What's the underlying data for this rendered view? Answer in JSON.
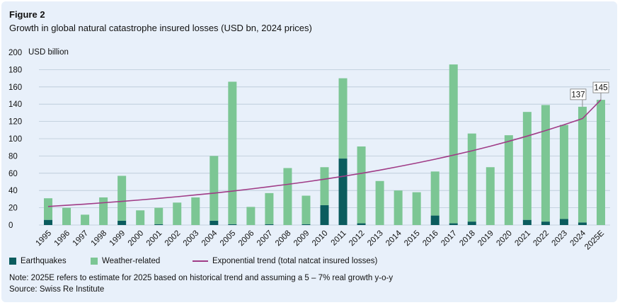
{
  "figure_label": "Figure 2",
  "title": "Growth in global natural catastrophe insured losses (USD bn, 2024 prices)",
  "note": "Note: 2025E refers to estimate for 2025 based on historical trend and assuming a 5 – 7% real growth y-o-y",
  "source": "Source: Swiss Re Institute",
  "colors": {
    "earthquakes": "#0b5c5e",
    "weather": "#7cc694",
    "trend": "#a03c87",
    "panel": "#e8f0fa"
  },
  "legend": {
    "earthquakes": "Earthquakes",
    "weather": "Weather-related",
    "trend": "Exponential trend (total natcat insured losses)"
  },
  "chart_data": {
    "type": "bar",
    "stacked": true,
    "ylabel": "USD billion",
    "ylim": [
      0,
      200
    ],
    "yticks": [
      0,
      20,
      40,
      60,
      80,
      100,
      120,
      140,
      160,
      180,
      200
    ],
    "grid": true,
    "categories": [
      "1995",
      "1996",
      "1997",
      "1998",
      "1999",
      "2000",
      "2001",
      "2002",
      "2003",
      "2004",
      "2005",
      "2006",
      "2007",
      "2008",
      "2009",
      "2010",
      "2011",
      "2012",
      "2013",
      "2014",
      "2015",
      "2016",
      "2017",
      "2018",
      "2019",
      "2020",
      "2021",
      "2022",
      "2023",
      "2024",
      "2025E"
    ],
    "series": [
      {
        "name": "Earthquakes",
        "values": [
          6,
          0,
          0,
          0,
          5,
          0,
          1,
          0,
          0,
          5,
          1,
          0,
          1,
          0,
          1,
          23,
          77,
          2,
          0,
          0,
          0,
          11,
          2,
          4,
          0,
          0,
          6,
          4,
          7,
          3,
          0
        ]
      },
      {
        "name": "Weather-related",
        "values": [
          25,
          20,
          12,
          32,
          52,
          17,
          19,
          26,
          32,
          75,
          165,
          21,
          36,
          66,
          33,
          44,
          93,
          89,
          51,
          40,
          38,
          51,
          184,
          102,
          67,
          104,
          125,
          135,
          109,
          134,
          145
        ]
      }
    ],
    "trend": {
      "name": "Exponential trend (total natcat insured losses)",
      "type": "exponential",
      "values": [
        21.5,
        22.9,
        24.3,
        25.8,
        27.4,
        29.1,
        30.9,
        32.8,
        34.9,
        37.0,
        39.3,
        41.8,
        44.4,
        47.1,
        50.0,
        53.1,
        56.4,
        59.9,
        63.6,
        67.6,
        71.8,
        76.2,
        81.0,
        86.0,
        91.3,
        97.0,
        103.0,
        109.4,
        116.2,
        123.4,
        145.0
      ]
    },
    "annotations": [
      {
        "category": "2024",
        "text": "137"
      },
      {
        "category": "2025E",
        "text": "145"
      }
    ]
  }
}
